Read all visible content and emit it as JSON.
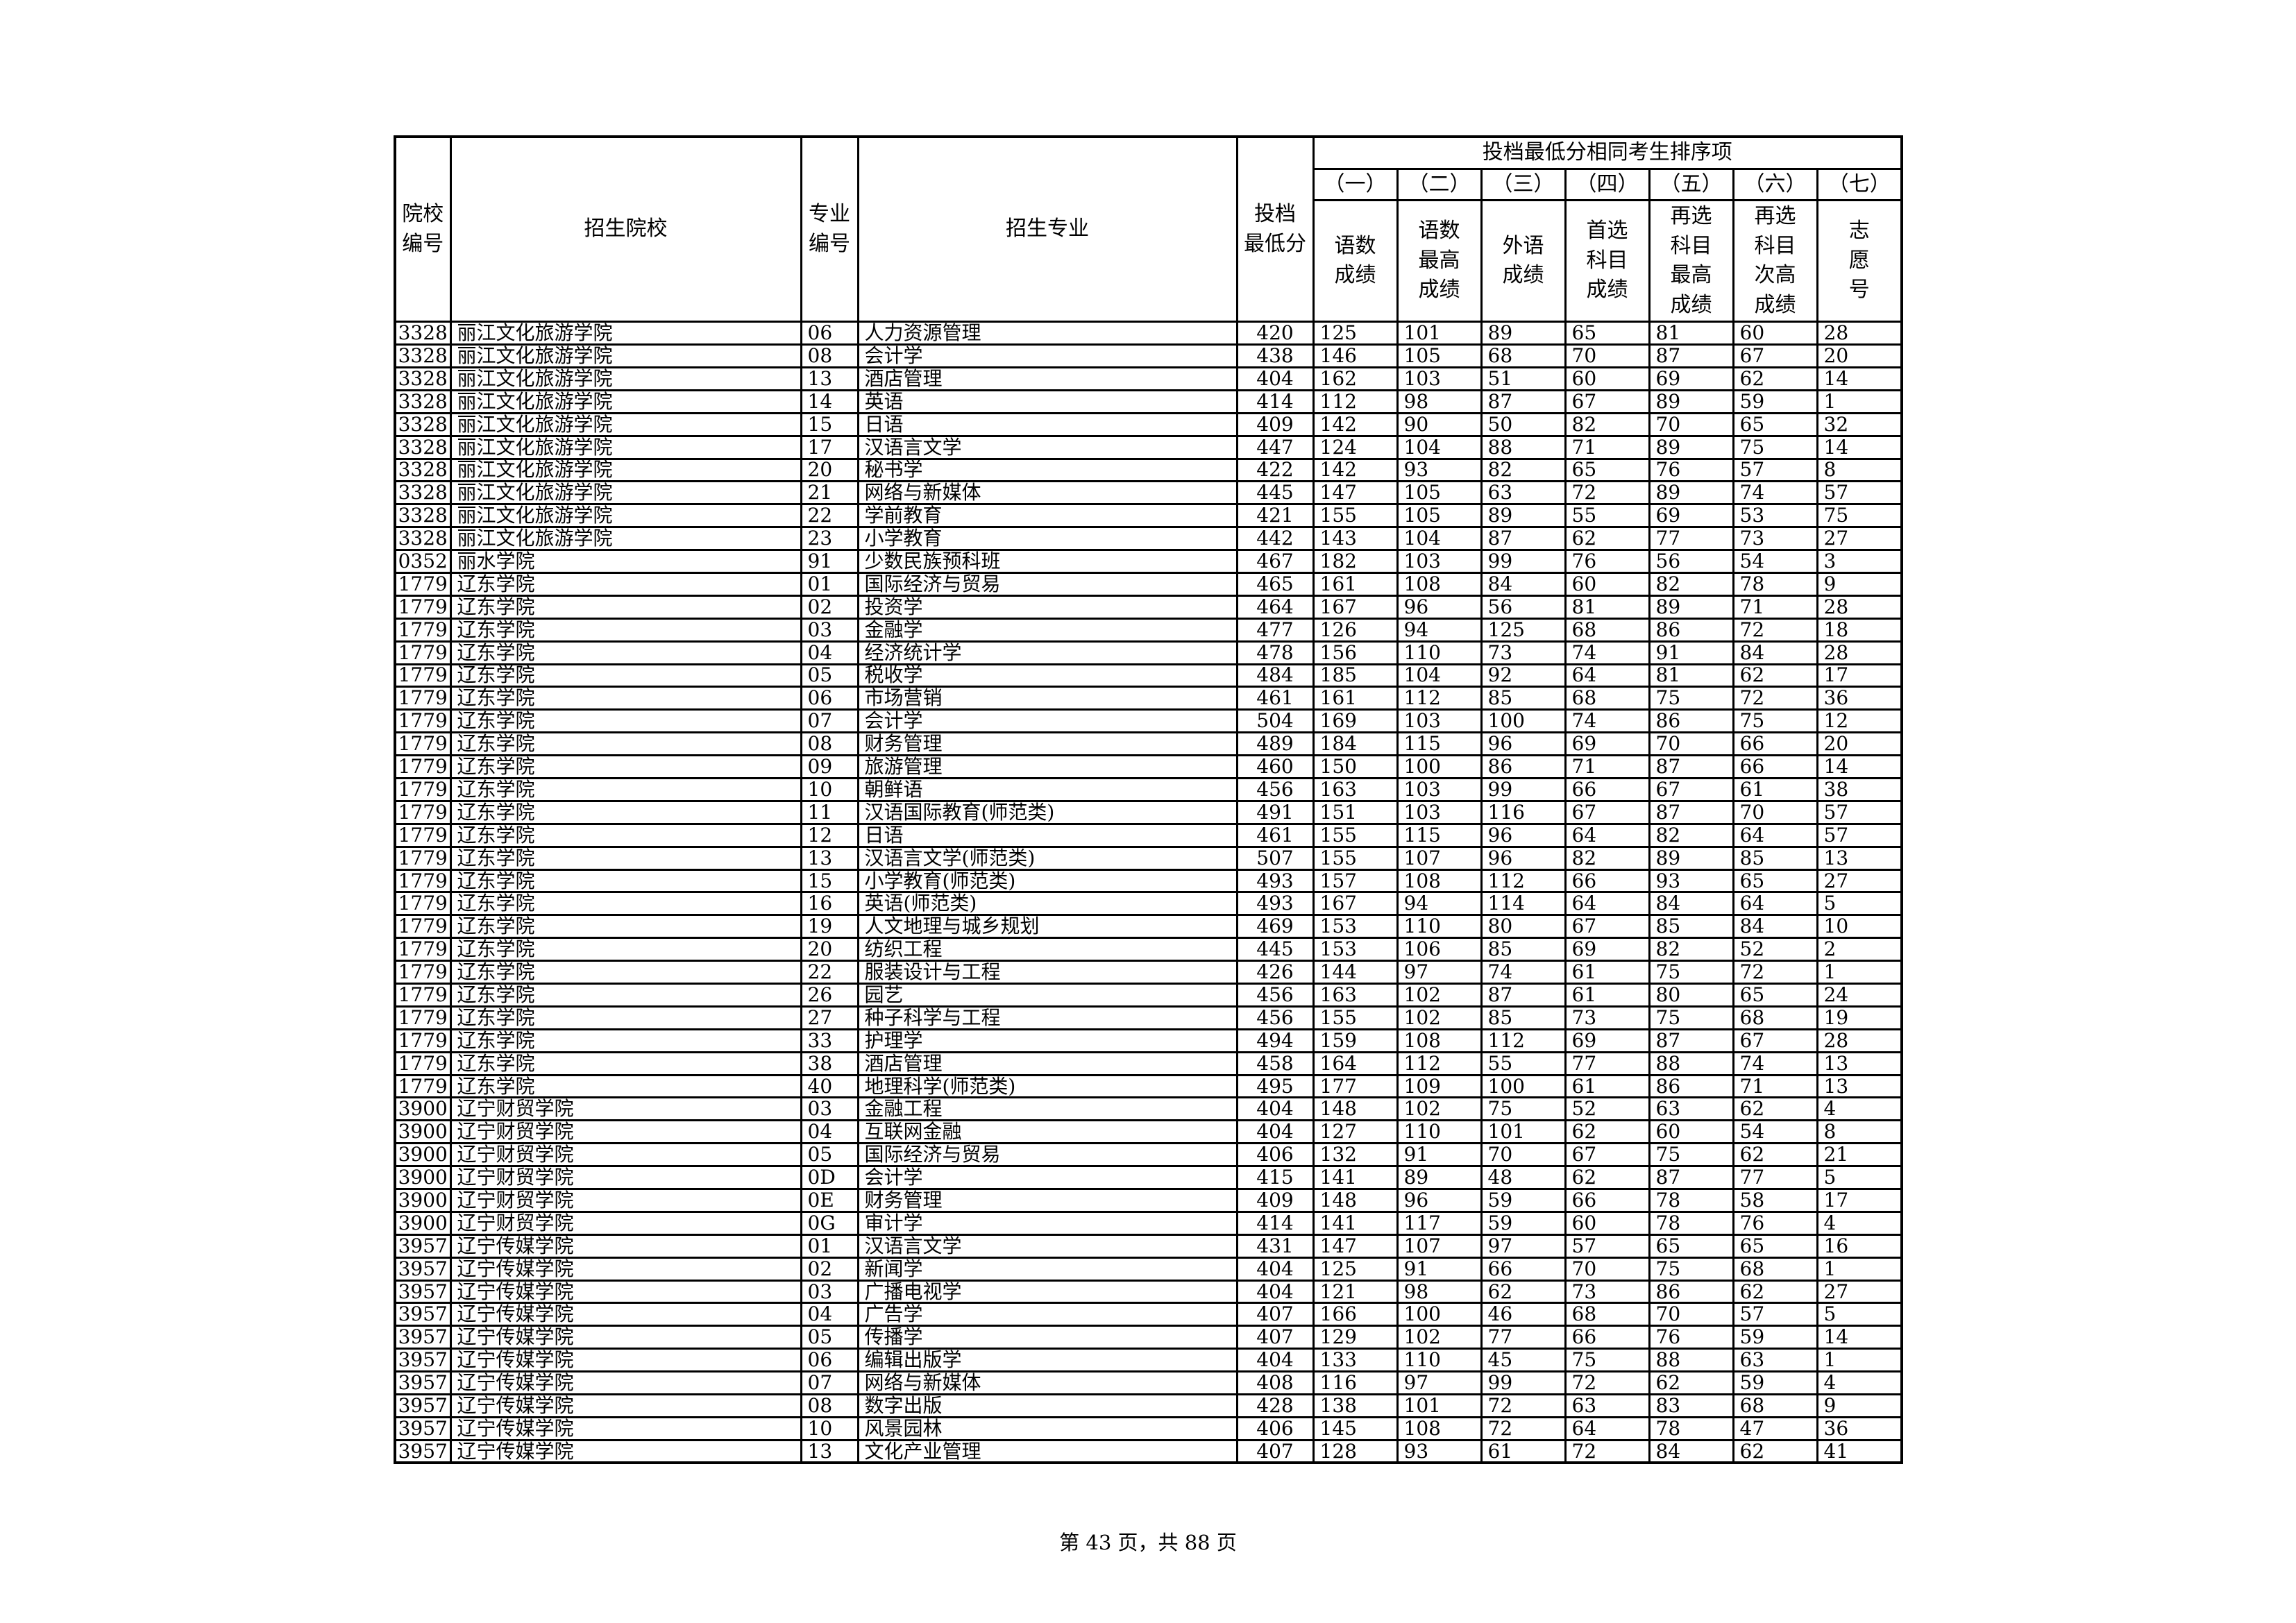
{
  "table": {
    "header": {
      "col_institution_code": "院校\n编号",
      "col_institution_name": "招生院校",
      "col_major_code": "专业\n编号",
      "col_major_name": "招生专业",
      "col_min_score": "投档\n最低分",
      "group_title": "投档最低分相同考生排序项",
      "sub_numbers": [
        "（一）",
        "（二）",
        "（三）",
        "（四）",
        "（五）",
        "（六）",
        "（七）"
      ],
      "sub_names": [
        "语数\n成绩",
        "语数\n最高\n成绩",
        "外语\n成绩",
        "首选\n科目\n成绩",
        "再选\n科目\n最高\n成绩",
        "再选\n科目\n次高\n成绩",
        "志\n愿\n号"
      ]
    },
    "rows": [
      [
        "3328",
        "丽江文化旅游学院",
        "06",
        "人力资源管理",
        "420",
        "125",
        "101",
        "89",
        "65",
        "81",
        "60",
        "28"
      ],
      [
        "3328",
        "丽江文化旅游学院",
        "08",
        "会计学",
        "438",
        "146",
        "105",
        "68",
        "70",
        "87",
        "67",
        "20"
      ],
      [
        "3328",
        "丽江文化旅游学院",
        "13",
        "酒店管理",
        "404",
        "162",
        "103",
        "51",
        "60",
        "69",
        "62",
        "14"
      ],
      [
        "3328",
        "丽江文化旅游学院",
        "14",
        "英语",
        "414",
        "112",
        "98",
        "87",
        "67",
        "89",
        "59",
        "1"
      ],
      [
        "3328",
        "丽江文化旅游学院",
        "15",
        "日语",
        "409",
        "142",
        "90",
        "50",
        "82",
        "70",
        "65",
        "32"
      ],
      [
        "3328",
        "丽江文化旅游学院",
        "17",
        "汉语言文学",
        "447",
        "124",
        "104",
        "88",
        "71",
        "89",
        "75",
        "14"
      ],
      [
        "3328",
        "丽江文化旅游学院",
        "20",
        "秘书学",
        "422",
        "142",
        "93",
        "82",
        "65",
        "76",
        "57",
        "8"
      ],
      [
        "3328",
        "丽江文化旅游学院",
        "21",
        "网络与新媒体",
        "445",
        "147",
        "105",
        "63",
        "72",
        "89",
        "74",
        "57"
      ],
      [
        "3328",
        "丽江文化旅游学院",
        "22",
        "学前教育",
        "421",
        "155",
        "105",
        "89",
        "55",
        "69",
        "53",
        "75"
      ],
      [
        "3328",
        "丽江文化旅游学院",
        "23",
        "小学教育",
        "442",
        "143",
        "104",
        "87",
        "62",
        "77",
        "73",
        "27"
      ],
      [
        "0352",
        "丽水学院",
        "91",
        "少数民族预科班",
        "467",
        "182",
        "103",
        "99",
        "76",
        "56",
        "54",
        "3"
      ],
      [
        "1779",
        "辽东学院",
        "01",
        "国际经济与贸易",
        "465",
        "161",
        "108",
        "84",
        "60",
        "82",
        "78",
        "9"
      ],
      [
        "1779",
        "辽东学院",
        "02",
        "投资学",
        "464",
        "167",
        "96",
        "56",
        "81",
        "89",
        "71",
        "28"
      ],
      [
        "1779",
        "辽东学院",
        "03",
        "金融学",
        "477",
        "126",
        "94",
        "125",
        "68",
        "86",
        "72",
        "18"
      ],
      [
        "1779",
        "辽东学院",
        "04",
        "经济统计学",
        "478",
        "156",
        "110",
        "73",
        "74",
        "91",
        "84",
        "28"
      ],
      [
        "1779",
        "辽东学院",
        "05",
        "税收学",
        "484",
        "185",
        "104",
        "92",
        "64",
        "81",
        "62",
        "17"
      ],
      [
        "1779",
        "辽东学院",
        "06",
        "市场营销",
        "461",
        "161",
        "112",
        "85",
        "68",
        "75",
        "72",
        "36"
      ],
      [
        "1779",
        "辽东学院",
        "07",
        "会计学",
        "504",
        "169",
        "103",
        "100",
        "74",
        "86",
        "75",
        "12"
      ],
      [
        "1779",
        "辽东学院",
        "08",
        "财务管理",
        "489",
        "184",
        "115",
        "96",
        "69",
        "70",
        "66",
        "20"
      ],
      [
        "1779",
        "辽东学院",
        "09",
        "旅游管理",
        "460",
        "150",
        "100",
        "86",
        "71",
        "87",
        "66",
        "14"
      ],
      [
        "1779",
        "辽东学院",
        "10",
        "朝鲜语",
        "456",
        "163",
        "103",
        "99",
        "66",
        "67",
        "61",
        "38"
      ],
      [
        "1779",
        "辽东学院",
        "11",
        "汉语国际教育(师范类)",
        "491",
        "151",
        "103",
        "116",
        "67",
        "87",
        "70",
        "57"
      ],
      [
        "1779",
        "辽东学院",
        "12",
        "日语",
        "461",
        "155",
        "115",
        "96",
        "64",
        "82",
        "64",
        "57"
      ],
      [
        "1779",
        "辽东学院",
        "13",
        "汉语言文学(师范类)",
        "507",
        "155",
        "107",
        "96",
        "82",
        "89",
        "85",
        "13"
      ],
      [
        "1779",
        "辽东学院",
        "15",
        "小学教育(师范类)",
        "493",
        "157",
        "108",
        "112",
        "66",
        "93",
        "65",
        "27"
      ],
      [
        "1779",
        "辽东学院",
        "16",
        "英语(师范类)",
        "493",
        "167",
        "94",
        "114",
        "64",
        "84",
        "64",
        "5"
      ],
      [
        "1779",
        "辽东学院",
        "19",
        "人文地理与城乡规划",
        "469",
        "153",
        "110",
        "80",
        "67",
        "85",
        "84",
        "10"
      ],
      [
        "1779",
        "辽东学院",
        "20",
        "纺织工程",
        "445",
        "153",
        "106",
        "85",
        "69",
        "82",
        "52",
        "2"
      ],
      [
        "1779",
        "辽东学院",
        "22",
        "服装设计与工程",
        "426",
        "144",
        "97",
        "74",
        "61",
        "75",
        "72",
        "1"
      ],
      [
        "1779",
        "辽东学院",
        "26",
        "园艺",
        "456",
        "163",
        "102",
        "87",
        "61",
        "80",
        "65",
        "24"
      ],
      [
        "1779",
        "辽东学院",
        "27",
        "种子科学与工程",
        "456",
        "155",
        "102",
        "85",
        "73",
        "75",
        "68",
        "19"
      ],
      [
        "1779",
        "辽东学院",
        "33",
        "护理学",
        "494",
        "159",
        "108",
        "112",
        "69",
        "87",
        "67",
        "28"
      ],
      [
        "1779",
        "辽东学院",
        "38",
        "酒店管理",
        "458",
        "164",
        "112",
        "55",
        "77",
        "88",
        "74",
        "13"
      ],
      [
        "1779",
        "辽东学院",
        "40",
        "地理科学(师范类)",
        "495",
        "177",
        "109",
        "100",
        "61",
        "86",
        "71",
        "13"
      ],
      [
        "3900",
        "辽宁财贸学院",
        "03",
        "金融工程",
        "404",
        "148",
        "102",
        "75",
        "52",
        "63",
        "62",
        "4"
      ],
      [
        "3900",
        "辽宁财贸学院",
        "04",
        "互联网金融",
        "404",
        "127",
        "110",
        "101",
        "62",
        "60",
        "54",
        "8"
      ],
      [
        "3900",
        "辽宁财贸学院",
        "05",
        "国际经济与贸易",
        "406",
        "132",
        "91",
        "70",
        "67",
        "75",
        "62",
        "21"
      ],
      [
        "3900",
        "辽宁财贸学院",
        "0D",
        "会计学",
        "415",
        "141",
        "89",
        "48",
        "62",
        "87",
        "77",
        "5"
      ],
      [
        "3900",
        "辽宁财贸学院",
        "0E",
        "财务管理",
        "409",
        "148",
        "96",
        "59",
        "66",
        "78",
        "58",
        "17"
      ],
      [
        "3900",
        "辽宁财贸学院",
        "0G",
        "审计学",
        "414",
        "141",
        "117",
        "59",
        "60",
        "78",
        "76",
        "4"
      ],
      [
        "3957",
        "辽宁传媒学院",
        "01",
        "汉语言文学",
        "431",
        "147",
        "107",
        "97",
        "57",
        "65",
        "65",
        "16"
      ],
      [
        "3957",
        "辽宁传媒学院",
        "02",
        "新闻学",
        "404",
        "125",
        "91",
        "66",
        "70",
        "75",
        "68",
        "1"
      ],
      [
        "3957",
        "辽宁传媒学院",
        "03",
        "广播电视学",
        "404",
        "121",
        "98",
        "62",
        "73",
        "86",
        "62",
        "27"
      ],
      [
        "3957",
        "辽宁传媒学院",
        "04",
        "广告学",
        "407",
        "166",
        "100",
        "46",
        "68",
        "70",
        "57",
        "5"
      ],
      [
        "3957",
        "辽宁传媒学院",
        "05",
        "传播学",
        "407",
        "129",
        "102",
        "77",
        "66",
        "76",
        "59",
        "14"
      ],
      [
        "3957",
        "辽宁传媒学院",
        "06",
        "编辑出版学",
        "404",
        "133",
        "110",
        "45",
        "75",
        "88",
        "63",
        "1"
      ],
      [
        "3957",
        "辽宁传媒学院",
        "07",
        "网络与新媒体",
        "408",
        "116",
        "97",
        "99",
        "72",
        "62",
        "59",
        "4"
      ],
      [
        "3957",
        "辽宁传媒学院",
        "08",
        "数字出版",
        "428",
        "138",
        "101",
        "72",
        "63",
        "83",
        "68",
        "9"
      ],
      [
        "3957",
        "辽宁传媒学院",
        "10",
        "风景园林",
        "406",
        "145",
        "108",
        "72",
        "64",
        "78",
        "47",
        "36"
      ],
      [
        "3957",
        "辽宁传媒学院",
        "13",
        "文化产业管理",
        "407",
        "128",
        "93",
        "61",
        "72",
        "84",
        "62",
        "41"
      ]
    ]
  },
  "footer": {
    "page_indicator": "第 43 页，共 88 页"
  }
}
